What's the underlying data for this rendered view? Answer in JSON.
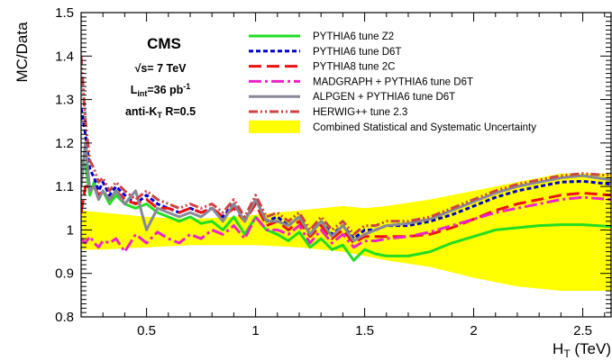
{
  "chart_data": {
    "type": "line",
    "xlabel": "H_T (TeV)",
    "xlabel_main": "H",
    "xlabel_sub": "T",
    "xlabel_unit": " (TeV)",
    "ylabel": "MC/Data",
    "xlim": [
      0.2,
      2.63
    ],
    "ylim": [
      0.8,
      1.5
    ],
    "x_ticks": [
      0.5,
      1,
      1.5,
      2,
      2.5
    ],
    "x_tick_labels": [
      "0.5",
      "1",
      "1.5",
      "2",
      "2.5"
    ],
    "y_ticks": [
      0.8,
      0.9,
      1.0,
      1.1,
      1.2,
      1.3,
      1.4,
      1.5
    ],
    "y_tick_labels": [
      "0.8",
      "0.9",
      "1",
      "1.1",
      "1.2",
      "1.3",
      "1.4",
      "1.5"
    ],
    "grid": false,
    "legend_position": "top-right",
    "annotations": {
      "experiment": "CMS",
      "energy": "√s= 7 TeV",
      "lumi_main": "L",
      "lumi_sub": "int",
      "lumi_value": "=36 pb",
      "lumi_sup": "-1",
      "algo_main": "anti-K",
      "algo_sub": "T",
      "algo_value": " R=0.5"
    },
    "uncertainty_band": {
      "name": "Combined Statistical and Systematic Uncertainty",
      "color": "#ffff00",
      "x": [
        0.2,
        0.3,
        0.5,
        0.7,
        0.9,
        1.0,
        1.2,
        1.4,
        1.5,
        1.6,
        1.8,
        2.0,
        2.2,
        2.4,
        2.63
      ],
      "upper": [
        1.045,
        1.04,
        1.03,
        1.025,
        1.03,
        1.035,
        1.045,
        1.055,
        1.05,
        1.055,
        1.07,
        1.09,
        1.11,
        1.13,
        1.13
      ],
      "lower": [
        0.955,
        0.955,
        0.96,
        0.965,
        0.965,
        0.965,
        0.96,
        0.95,
        0.94,
        0.93,
        0.915,
        0.89,
        0.87,
        0.86,
        0.86
      ]
    },
    "series": [
      {
        "name": "PYTHIA6 tune Z2",
        "color": "#22dd22",
        "dash": "",
        "width": 3,
        "x": [
          0.2,
          0.22,
          0.24,
          0.26,
          0.28,
          0.3,
          0.33,
          0.36,
          0.4,
          0.45,
          0.5,
          0.55,
          0.6,
          0.65,
          0.7,
          0.75,
          0.8,
          0.85,
          0.9,
          0.95,
          1.0,
          1.05,
          1.1,
          1.15,
          1.2,
          1.25,
          1.3,
          1.35,
          1.4,
          1.45,
          1.5,
          1.55,
          1.6,
          1.7,
          1.8,
          1.9,
          2.0,
          2.1,
          2.2,
          2.3,
          2.4,
          2.5,
          2.63
        ],
        "y": [
          1.16,
          1.15,
          1.08,
          1.11,
          1.07,
          1.09,
          1.06,
          1.08,
          1.06,
          1.05,
          1.06,
          1.04,
          1.03,
          1.02,
          1.03,
          1.015,
          1.02,
          1.0,
          1.03,
          0.99,
          1.03,
          1.0,
          0.99,
          0.975,
          0.995,
          0.96,
          0.98,
          0.955,
          0.965,
          0.93,
          0.955,
          0.945,
          0.94,
          0.94,
          0.95,
          0.97,
          0.985,
          1.0,
          1.005,
          1.01,
          1.012,
          1.012,
          1.008
        ]
      },
      {
        "name": "PYTHIA6 tune D6T",
        "color": "#0000cc",
        "dash": "5,3",
        "width": 3,
        "x": [
          0.2,
          0.22,
          0.24,
          0.26,
          0.28,
          0.3,
          0.33,
          0.36,
          0.4,
          0.45,
          0.5,
          0.55,
          0.6,
          0.65,
          0.7,
          0.75,
          0.8,
          0.85,
          0.9,
          0.95,
          1.0,
          1.05,
          1.1,
          1.15,
          1.2,
          1.25,
          1.3,
          1.35,
          1.4,
          1.45,
          1.5,
          1.55,
          1.6,
          1.7,
          1.8,
          1.9,
          2.0,
          2.1,
          2.2,
          2.3,
          2.4,
          2.5,
          2.63
        ],
        "y": [
          1.28,
          1.22,
          1.14,
          1.12,
          1.09,
          1.11,
          1.08,
          1.1,
          1.08,
          1.06,
          1.08,
          1.06,
          1.05,
          1.04,
          1.05,
          1.04,
          1.05,
          1.03,
          1.06,
          1.02,
          1.07,
          1.02,
          1.03,
          1.01,
          1.03,
          0.99,
          1.02,
          0.99,
          1.01,
          0.98,
          1.0,
          1.0,
          1.01,
          1.01,
          1.02,
          1.035,
          1.055,
          1.075,
          1.09,
          1.1,
          1.11,
          1.112,
          1.105
        ]
      },
      {
        "name": "PYTHIA8 tune 2C",
        "color": "#ee1111",
        "dash": "14,6",
        "width": 3,
        "x": [
          0.2,
          0.22,
          0.24,
          0.26,
          0.28,
          0.3,
          0.33,
          0.36,
          0.4,
          0.45,
          0.5,
          0.55,
          0.6,
          0.65,
          0.7,
          0.75,
          0.8,
          0.85,
          0.9,
          0.95,
          1.0,
          1.05,
          1.1,
          1.15,
          1.2,
          1.25,
          1.3,
          1.35,
          1.4,
          1.45,
          1.5,
          1.55,
          1.6,
          1.7,
          1.8,
          1.9,
          2.0,
          2.1,
          2.2,
          2.3,
          2.4,
          2.5,
          2.63
        ],
        "y": [
          1.04,
          1.1,
          1.1,
          1.1,
          1.08,
          1.09,
          1.07,
          1.09,
          1.07,
          1.06,
          1.07,
          1.05,
          1.05,
          1.04,
          1.05,
          1.04,
          1.05,
          1.03,
          1.05,
          1.02,
          1.06,
          1.01,
          1.02,
          1.0,
          1.02,
          0.985,
          1.01,
          0.98,
          1.0,
          0.97,
          0.985,
          0.985,
          0.985,
          0.985,
          0.99,
          1.005,
          1.025,
          1.045,
          1.06,
          1.07,
          1.08,
          1.085,
          1.08
        ]
      },
      {
        "name": "MADGRAPH + PYTHIA6 tune D6T",
        "color": "#ee22cc",
        "dash": "14,4,3,4",
        "width": 3,
        "x": [
          0.2,
          0.22,
          0.24,
          0.26,
          0.28,
          0.3,
          0.33,
          0.36,
          0.4,
          0.45,
          0.5,
          0.55,
          0.6,
          0.65,
          0.7,
          0.75,
          0.8,
          0.85,
          0.9,
          0.95,
          1.0,
          1.05,
          1.1,
          1.15,
          1.2,
          1.25,
          1.3,
          1.35,
          1.4,
          1.45,
          1.5,
          1.55,
          1.6,
          1.7,
          1.8,
          1.9,
          2.0,
          2.1,
          2.2,
          2.3,
          2.4,
          2.5,
          2.63
        ],
        "y": [
          0.98,
          0.97,
          0.985,
          0.97,
          0.96,
          0.975,
          0.97,
          0.98,
          0.95,
          0.99,
          0.97,
          0.995,
          0.98,
          0.97,
          0.99,
          0.98,
          1.0,
          0.99,
          1.01,
          0.98,
          1.03,
          1.0,
          1.0,
          0.99,
          1.01,
          0.97,
          1.0,
          0.97,
          0.99,
          0.96,
          0.975,
          0.975,
          0.98,
          0.985,
          0.995,
          1.01,
          1.025,
          1.04,
          1.05,
          1.06,
          1.07,
          1.075,
          1.07
        ]
      },
      {
        "name": "ALPGEN + PYTHIA6 tune D6T",
        "color": "#888899",
        "dash": "",
        "width": 3,
        "x": [
          0.2,
          0.22,
          0.24,
          0.26,
          0.28,
          0.3,
          0.33,
          0.36,
          0.4,
          0.45,
          0.5,
          0.55,
          0.6,
          0.65,
          0.7,
          0.75,
          0.8,
          0.85,
          0.9,
          0.95,
          1.0,
          1.05,
          1.1,
          1.15,
          1.2,
          1.25,
          1.3,
          1.35,
          1.4,
          1.45,
          1.5,
          1.55,
          1.6,
          1.7,
          1.8,
          1.9,
          2.0,
          2.1,
          2.2,
          2.3,
          2.4,
          2.5,
          2.63
        ],
        "y": [
          1.1,
          1.2,
          1.09,
          1.1,
          1.07,
          1.09,
          1.07,
          1.09,
          1.06,
          1.09,
          1.0,
          1.05,
          1.04,
          1.03,
          1.04,
          1.03,
          1.05,
          1.02,
          1.06,
          1.02,
          1.07,
          1.02,
          1.02,
          1.01,
          1.03,
          0.99,
          1.02,
          0.985,
          1.01,
          0.975,
          0.99,
          1.0,
          1.01,
          1.015,
          1.025,
          1.045,
          1.065,
          1.085,
          1.1,
          1.11,
          1.12,
          1.125,
          1.115
        ]
      },
      {
        "name": "HERWIG++ tune 2.3",
        "color": "#cc4444",
        "dash": "10,3,2,3,2,3",
        "width": 3,
        "x": [
          0.2,
          0.22,
          0.24,
          0.26,
          0.28,
          0.3,
          0.33,
          0.36,
          0.4,
          0.45,
          0.5,
          0.55,
          0.6,
          0.65,
          0.7,
          0.75,
          0.8,
          0.85,
          0.9,
          0.95,
          1.0,
          1.05,
          1.1,
          1.15,
          1.2,
          1.25,
          1.3,
          1.35,
          1.4,
          1.45,
          1.5,
          1.55,
          1.6,
          1.7,
          1.8,
          1.9,
          2.0,
          2.1,
          2.2,
          2.3,
          2.4,
          2.5,
          2.63
        ],
        "y": [
          1.4,
          1.25,
          1.16,
          1.14,
          1.11,
          1.12,
          1.09,
          1.11,
          1.09,
          1.07,
          1.09,
          1.07,
          1.06,
          1.05,
          1.06,
          1.05,
          1.06,
          1.04,
          1.07,
          1.03,
          1.08,
          1.03,
          1.04,
          1.02,
          1.04,
          1.0,
          1.03,
          1.0,
          1.02,
          0.99,
          1.01,
          1.01,
          1.02,
          1.02,
          1.03,
          1.05,
          1.07,
          1.09,
          1.105,
          1.115,
          1.125,
          1.13,
          1.125
        ]
      }
    ]
  }
}
